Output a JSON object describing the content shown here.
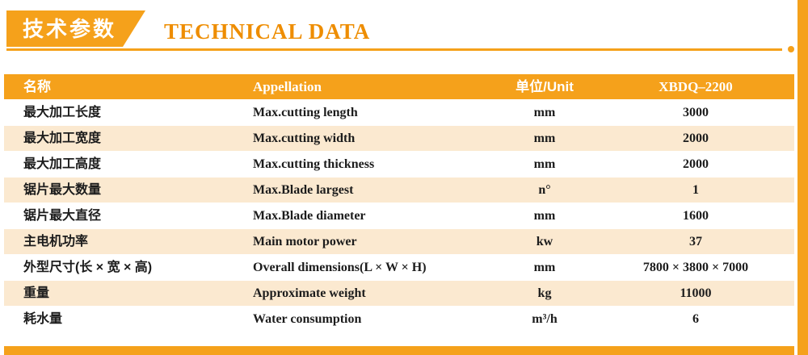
{
  "colors": {
    "accent": "#F5A11B",
    "accent-deep": "#EE8D00",
    "row-alt": "#FBE9D0",
    "text": "#1c1c1c"
  },
  "header": {
    "title_cn": "技术参数",
    "title_en": "TECHNICAL DATA"
  },
  "table": {
    "columns": [
      {
        "label": "名称"
      },
      {
        "label": "Appellation"
      },
      {
        "label": "单位/Unit"
      },
      {
        "label": "XBDQ–2200"
      }
    ],
    "rows": [
      {
        "name": "最大加工长度",
        "appellation": "Max.cutting length",
        "unit": "mm",
        "value": "3000"
      },
      {
        "name": "最大加工宽度",
        "appellation": "Max.cutting width",
        "unit": "mm",
        "value": "2000"
      },
      {
        "name": "最大加工高度",
        "appellation": "Max.cutting thickness",
        "unit": "mm",
        "value": "2000"
      },
      {
        "name": "锯片最大数量",
        "appellation": "Max.Blade largest",
        "unit": "n°",
        "value": "1"
      },
      {
        "name": "锯片最大直径",
        "appellation": "Max.Blade diameter",
        "unit": "mm",
        "value": "1600"
      },
      {
        "name": "主电机功率",
        "appellation": "Main motor power",
        "unit": "kw",
        "value": "37"
      },
      {
        "name": "外型尺寸(长 × 宽 × 高)",
        "appellation": "Overall dimensions(L × W × H)",
        "unit": "mm",
        "value": "7800 × 3800 × 7000"
      },
      {
        "name": "重量",
        "appellation": "Approximate weight",
        "unit": "kg",
        "value": "11000"
      },
      {
        "name": "耗水量",
        "appellation": "Water consumption",
        "unit": "m³/h",
        "value": "6"
      }
    ]
  }
}
